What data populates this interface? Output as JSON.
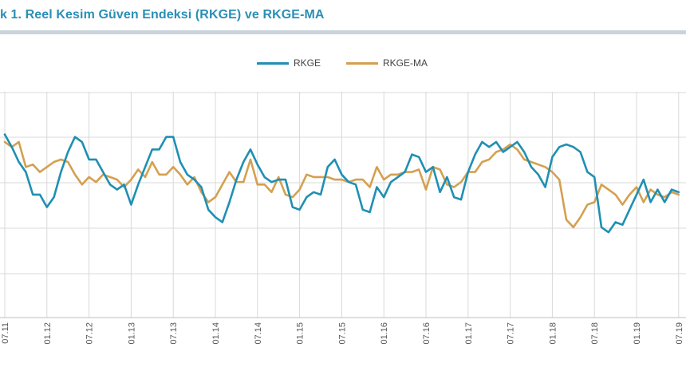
{
  "chart_data": {
    "type": "line",
    "title": "k 1. Reel Kesim Güven Endeksi (RKGE) ve RKGE-MA",
    "xlabel": "",
    "ylabel": "",
    "grid": true,
    "legend_position": "top-center",
    "x_ticks": [
      "07.11",
      "01.12",
      "07.12",
      "01.13",
      "07.13",
      "01.14",
      "07.14",
      "01.15",
      "07.15",
      "01.16",
      "07.16",
      "01.17",
      "07.17",
      "01.18",
      "07.18",
      "01.19",
      "07.19"
    ],
    "x_range_months": [
      0,
      96
    ],
    "ylim": [
      75,
      120
    ],
    "series": [
      {
        "name": "RKGE",
        "color": "#1f8fb3",
        "values": [
          111.5,
          109,
          106,
          104,
          99.5,
          99.5,
          97,
          99,
          104,
          108,
          111,
          110,
          106.5,
          106.5,
          104,
          101.5,
          100.5,
          101.5,
          97.5,
          101.5,
          105,
          108.5,
          108.5,
          111,
          111,
          106,
          103.5,
          102.5,
          101,
          96.5,
          95,
          94,
          98,
          102.5,
          106,
          108.5,
          105.5,
          103,
          102,
          102.5,
          102.5,
          97,
          96.5,
          99,
          100,
          99.5,
          105,
          106.5,
          103.5,
          102,
          101.5,
          96.5,
          96,
          101,
          99,
          102,
          103,
          104,
          107.5,
          107,
          104,
          105,
          100,
          103,
          99,
          98.5,
          104,
          107.5,
          110,
          109,
          110,
          108,
          109,
          110,
          108,
          105,
          103.5,
          101,
          107,
          109,
          109.5,
          109,
          108,
          104,
          103,
          93,
          92,
          94,
          93.5,
          96.5,
          99.5,
          102.5,
          98,
          100.5,
          98,
          100.5,
          100
        ]
      },
      {
        "name": "RKGE-MA",
        "color": "#d4a050",
        "values": [
          110,
          109,
          110,
          105,
          105.5,
          104,
          105,
          106,
          106.5,
          106,
          103.5,
          101.5,
          103,
          102,
          103.5,
          103,
          102.5,
          101,
          102.5,
          104.5,
          103,
          106,
          103.5,
          103.5,
          105,
          103.5,
          101.5,
          103,
          100,
          98,
          99,
          101.5,
          104,
          102,
          102,
          106.5,
          101.5,
          101.5,
          100,
          103,
          99.5,
          99,
          100.5,
          103.5,
          103,
          103,
          103,
          102.5,
          102.5,
          102,
          102.5,
          102.5,
          101,
          105,
          102.5,
          103.5,
          103.5,
          104,
          104,
          104.5,
          100.5,
          105,
          104.5,
          101.5,
          101,
          102,
          104,
          104,
          106,
          106.5,
          108,
          108.5,
          109.5,
          108.5,
          106.5,
          106,
          105.5,
          105,
          104,
          102.5,
          94.5,
          93,
          95,
          97.5,
          98,
          101.5,
          100.5,
          99.5,
          97.5,
          99.5,
          101,
          98,
          100.5,
          99.5,
          99,
          100,
          99.5
        ]
      }
    ]
  }
}
